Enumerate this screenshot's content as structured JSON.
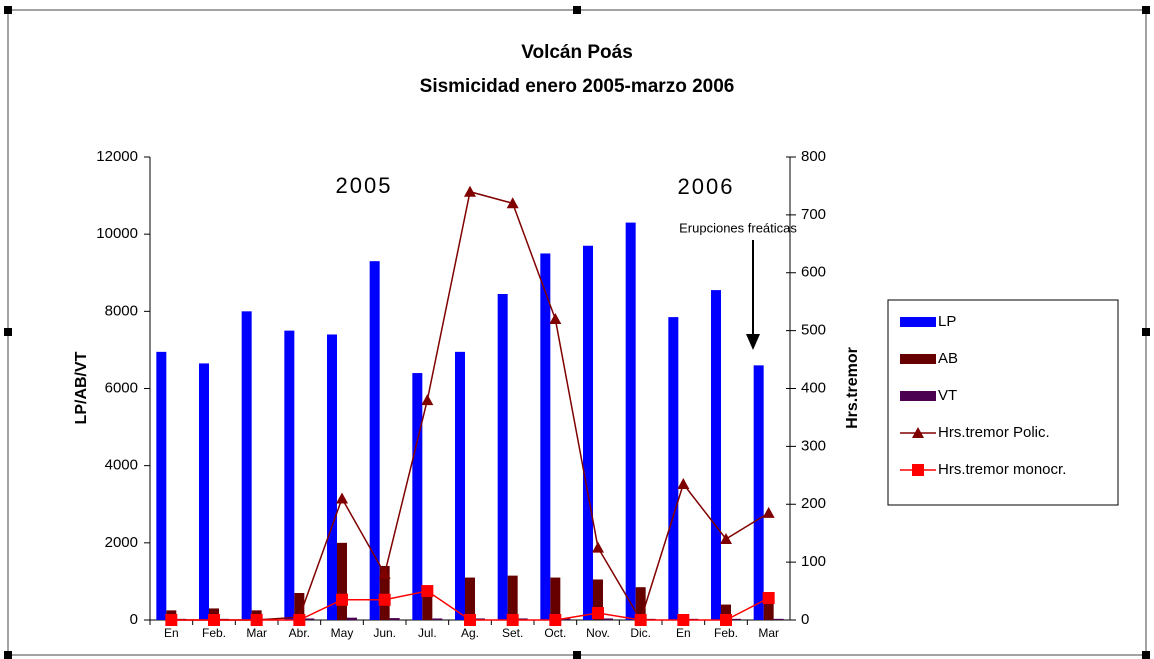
{
  "chart_data": {
    "type": "bar",
    "title": "Volcán Poás",
    "subtitle": "Sismicidad enero 2005-marzo 2006",
    "y_label": "LP/AB/VT",
    "y2_label": "Hrs.tremor",
    "annotations": [
      "2005",
      "2006",
      "Erupciones freáticas"
    ],
    "categories": [
      "En",
      "Feb.",
      "Mar",
      "Abr.",
      "May",
      "Jun.",
      "Jul.",
      "Ag.",
      "Set.",
      "Oct.",
      "Nov.",
      "Dic.",
      "En",
      "Feb.",
      "Mar"
    ],
    "series": [
      {
        "name": "LP",
        "type": "bar",
        "color": "#0000ff",
        "values": [
          6950,
          6650,
          8000,
          7500,
          7400,
          9300,
          6400,
          6950,
          8450,
          9500,
          9700,
          10300,
          7850,
          8550,
          6600
        ]
      },
      {
        "name": "AB",
        "type": "bar",
        "color": "#660000",
        "values": [
          250,
          300,
          250,
          700,
          2000,
          1400,
          600,
          1100,
          1150,
          1100,
          1050,
          850,
          100,
          400,
          450
        ]
      },
      {
        "name": "VT",
        "type": "bar",
        "color": "#4b0050",
        "values": [
          30,
          30,
          30,
          40,
          60,
          50,
          40,
          40,
          40,
          40,
          40,
          30,
          30,
          30,
          30
        ]
      },
      {
        "name": "Hrs.tremor Polic.",
        "type": "line",
        "marker": "triangle",
        "axis": "y2",
        "color": "#800000",
        "values": [
          0,
          0,
          0,
          5,
          210,
          80,
          380,
          740,
          720,
          520,
          125,
          0,
          235,
          140,
          185
        ]
      },
      {
        "name": "Hrs.tremor monocr.",
        "type": "line",
        "marker": "square",
        "axis": "y2",
        "color": "#ff0000",
        "values": [
          0,
          0,
          0,
          0,
          35,
          35,
          50,
          0,
          0,
          0,
          12,
          0,
          0,
          0,
          38
        ]
      }
    ],
    "ylim": [
      0,
      12000
    ],
    "yticks": [
      0,
      2000,
      4000,
      6000,
      8000,
      10000,
      12000
    ],
    "y2lim": [
      0,
      800
    ],
    "y2ticks": [
      0,
      100,
      200,
      300,
      400,
      500,
      600,
      700,
      800
    ],
    "grid": false
  }
}
